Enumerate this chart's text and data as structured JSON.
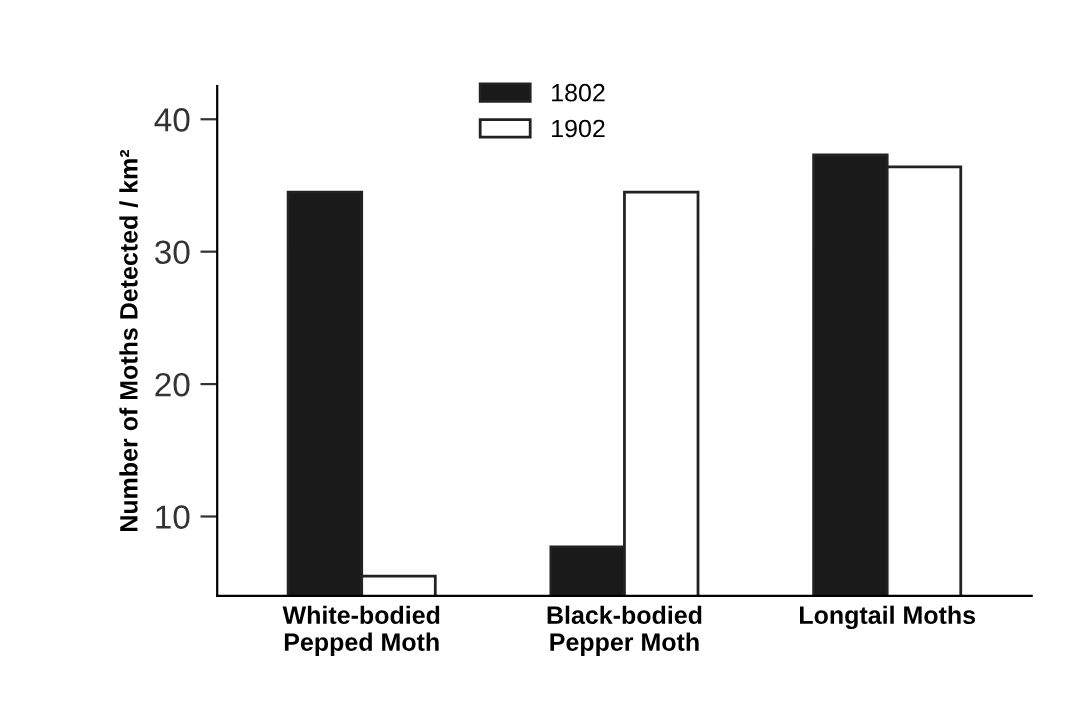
{
  "chart_data": {
    "type": "bar",
    "ylabel": "Number of Moths Detected / km²",
    "categories": [
      "White-bodied\nPepped Moth",
      "Black-bodied\nPepper Moth",
      "Longtail Moths"
    ],
    "series": [
      {
        "name": "1802",
        "color": "#1a1a1a",
        "values": [
          34.5,
          7.7,
          37.3
        ]
      },
      {
        "name": "1902",
        "color": "#ffffff",
        "values": [
          5.5,
          34.5,
          36.4
        ]
      }
    ],
    "ylim": [
      4,
      42.5
    ],
    "yticks": [
      10,
      20,
      30,
      40
    ],
    "grid": false,
    "legend": "top"
  }
}
